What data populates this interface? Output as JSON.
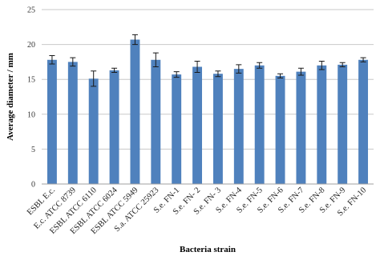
{
  "chart_data": {
    "type": "bar",
    "xlabel": "Bacteria strain",
    "ylabel": "Average diameter / mm",
    "ylim": [
      0,
      25
    ],
    "yticks": [
      0,
      5,
      10,
      15,
      20,
      25
    ],
    "grid": true,
    "legend": "none",
    "bar_color": "#4f81bd",
    "categories": [
      "ESBL E.c.",
      "E.c. ATCC 8739",
      "ESBL ATCC 6110",
      "ESBL ATCC 6024",
      "ESBL ATCC 5949",
      "S.a. ATCC 25923",
      "S.e. FN-1",
      "S.e. FN- 2",
      "S.e. FN- 3",
      "S.e. FN-4",
      "S.e. FN-5",
      "S.e. FN-6",
      "S.e. FN-7",
      "S.e. FN-8",
      "S.e. FN-9",
      "S.e. FN-10"
    ],
    "values": [
      17.8,
      17.5,
      15.1,
      16.3,
      20.7,
      17.8,
      15.7,
      16.8,
      15.8,
      16.5,
      17.0,
      15.5,
      16.1,
      17.0,
      17.1,
      17.8
    ],
    "errors": [
      0.6,
      0.6,
      1.1,
      0.3,
      0.7,
      1.0,
      0.4,
      0.8,
      0.4,
      0.6,
      0.4,
      0.3,
      0.5,
      0.6,
      0.3,
      0.3
    ]
  }
}
